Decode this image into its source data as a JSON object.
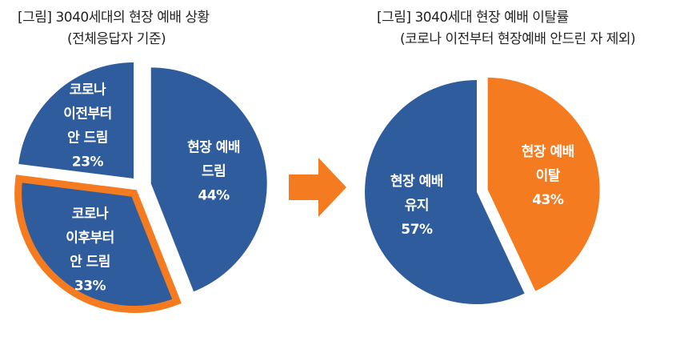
{
  "chart_data": [
    {
      "type": "pie",
      "title": "[그림] 3040세대의 현장 예배 상황",
      "subtitle": "(전체응답자 기준)",
      "slices": [
        {
          "label_lines": [
            "현장 예배",
            "드림"
          ],
          "value_text": "44%",
          "value": 44,
          "color": "#2E5C9C",
          "highlight": false
        },
        {
          "label_lines": [
            "코로나",
            "이후부터",
            "안 드림"
          ],
          "value_text": "33%",
          "value": 33,
          "color": "#2E5C9C",
          "highlight": true
        },
        {
          "label_lines": [
            "코로나",
            "이전부터",
            "안 드림"
          ],
          "value_text": "23%",
          "value": 23,
          "color": "#2E5C9C",
          "highlight": false
        }
      ]
    },
    {
      "type": "pie",
      "title": "[그림] 3040세대 현장 예배 이탈률",
      "subtitle": "(코로나 이전부터 현장예배 안드린 자 제외)",
      "slices": [
        {
          "label_lines": [
            "현장 예배",
            "이탈"
          ],
          "value_text": "43%",
          "value": 43,
          "color": "#F47B20",
          "highlight": false
        },
        {
          "label_lines": [
            "현장 예배",
            "유지"
          ],
          "value_text": "57%",
          "value": 57,
          "color": "#2E5C9C",
          "highlight": false
        }
      ]
    }
  ],
  "colors": {
    "blue": "#2E5C9C",
    "orange": "#F47B20",
    "highlight_border": "#F47B20"
  },
  "arrow_icon": "right-arrow-icon"
}
